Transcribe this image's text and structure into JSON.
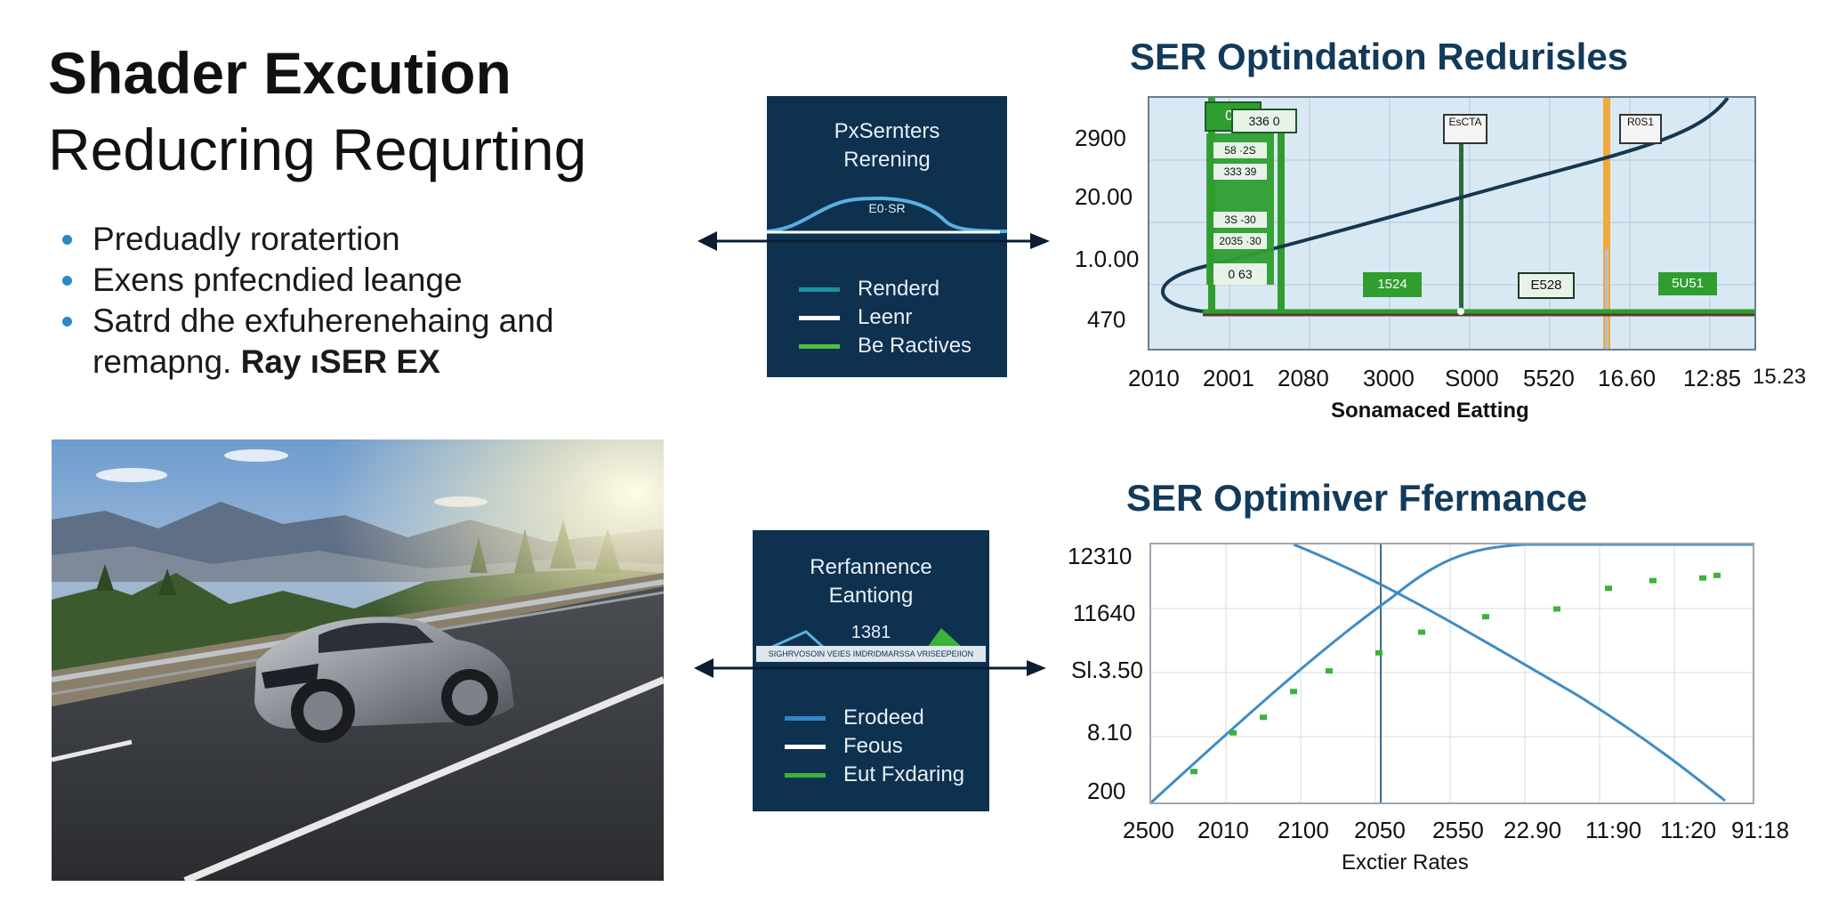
{
  "left": {
    "title_line1": "Shader Excution",
    "title_line2": "Reducring Requrting",
    "bullets": [
      "Preduadly roratertion",
      "Exens pnfecndied leange",
      "Satrd dhe exfuherenehaing and"
    ],
    "bullet_continuation": "remapng.",
    "bullet_continuation_bold": "Ray ıSER EX"
  },
  "panel_top": {
    "title_line1": "PxSernters",
    "title_line2": "Rerening",
    "curve_label": "E0·SR",
    "legend": [
      {
        "label": "Renderd",
        "color": "#1f8fa0"
      },
      {
        "label": "Leenr",
        "color": "#ffffff"
      },
      {
        "label": "Be Ractives",
        "color": "#4fbf3a"
      }
    ]
  },
  "panel_bottom": {
    "title_line1": "Rerfannence",
    "title_line2": "Eantiong",
    "peak_label": "1381",
    "strip_text": "SIGHRVOSOIN VEIES IMDRIDMARSSA VRISEEPEIION",
    "legend": [
      {
        "label": "Erodeed",
        "color": "#2f87c8"
      },
      {
        "label": "Feous",
        "color": "#ffffff"
      },
      {
        "label": "Eut Fxdaring",
        "color": "#3bb23a"
      }
    ]
  },
  "colors": {
    "navy_panel": "#0e3150",
    "chart_title": "#123a5a",
    "curve_dark": "#163650",
    "green": "#2f9e2f",
    "orange": "#f0a93a",
    "line_blue": "#3f8cc4"
  },
  "chart_data": [
    {
      "type": "line",
      "title": "SER Optindation Redurisles",
      "xlabel": "Sonamaced Eatting",
      "x_tick_labels": [
        "2010",
        "2001",
        "2080",
        "3000",
        "S000",
        "5520",
        "16.60",
        "12:85",
        "15.23"
      ],
      "y_tick_labels": [
        "2900",
        "20.00",
        "1.0.00",
        "470"
      ],
      "box_labels": [
        "00",
        "336 0",
        "58 ·2S",
        "333 39",
        "3S -30",
        "2035 ·30",
        "0 63",
        "1524",
        "E528",
        "5U51",
        "EsCTA",
        "R0S1"
      ],
      "series": [
        {
          "values_described": "dark curve rising from lower-left hook to top-right"
        }
      ]
    },
    {
      "type": "line",
      "title": "SER Optimiver Ffermance",
      "xlabel": "Exctier Rates",
      "x_tick_labels": [
        "2500",
        "2010",
        "2100",
        "2050",
        "2550",
        "22.90",
        "11:90",
        "11:20",
        "91:18"
      ],
      "y_tick_labels": [
        "12310",
        "11640",
        "Sl.3.50",
        "8.10",
        "200"
      ],
      "series_points_y": [
        0.12,
        0.27,
        0.33,
        0.43,
        0.51,
        0.58,
        0.66,
        0.72,
        0.75,
        0.83,
        0.86,
        0.87,
        0.88
      ]
    }
  ]
}
